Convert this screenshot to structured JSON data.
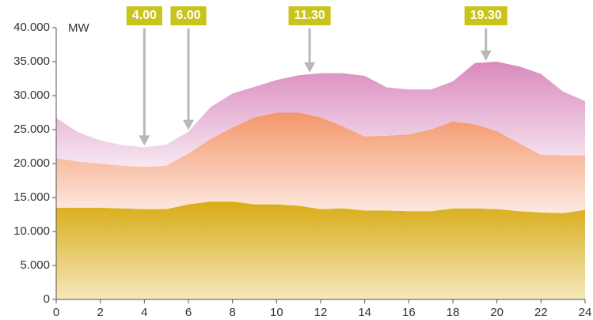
{
  "chart_data": {
    "type": "stacked-area",
    "y_unit": "MW",
    "x": [
      0,
      1,
      2,
      3,
      4,
      5,
      6,
      7,
      8,
      9,
      10,
      11,
      12,
      13,
      14,
      15,
      16,
      17,
      18,
      19,
      20,
      21,
      22,
      23,
      24
    ],
    "series": [
      {
        "color": "#d9ab14",
        "values": [
          13500,
          13500,
          13500,
          13400,
          13300,
          13300,
          14000,
          14400,
          14400,
          14000,
          14000,
          13800,
          13300,
          13400,
          13100,
          13100,
          13000,
          13000,
          13400,
          13400,
          13300,
          13000,
          12800,
          12700,
          13200
        ]
      },
      {
        "color": "#f3966a",
        "values": [
          7300,
          6800,
          6500,
          6300,
          6200,
          6400,
          7500,
          9200,
          10900,
          12800,
          13500,
          13700,
          13500,
          12100,
          10900,
          11000,
          11300,
          12000,
          12800,
          12400,
          11500,
          10000,
          8500,
          8500,
          8000
        ]
      },
      {
        "color": "#d98abd",
        "values": [
          5900,
          4300,
          3400,
          3000,
          2900,
          3100,
          3200,
          4700,
          5000,
          4500,
          4800,
          5500,
          6500,
          7800,
          8900,
          7100,
          6600,
          5900,
          5900,
          9000,
          10200,
          11300,
          11900,
          9400,
          8000
        ]
      }
    ],
    "xlim": [
      0,
      24
    ],
    "xticks": [
      0,
      2,
      4,
      6,
      8,
      10,
      12,
      14,
      16,
      18,
      20,
      22,
      24
    ],
    "ylim": [
      0,
      40000
    ],
    "yticks": [
      {
        "value": 0,
        "label": "0"
      },
      {
        "value": 5000,
        "label": "5.000"
      },
      {
        "value": 10000,
        "label": "10.000"
      },
      {
        "value": 15000,
        "label": "15.000"
      },
      {
        "value": 20000,
        "label": "20.000"
      },
      {
        "value": 25000,
        "label": "25.000"
      },
      {
        "value": 30000,
        "label": "30.000"
      },
      {
        "value": 35000,
        "label": "35.000"
      },
      {
        "value": 40000,
        "label": "40.000"
      }
    ],
    "annotation_color": "#c8c41c",
    "annotations": [
      {
        "x": 4,
        "label": "4.00"
      },
      {
        "x": 6,
        "label": "6.00"
      },
      {
        "x": 11.5,
        "label": "11.30"
      },
      {
        "x": 19.5,
        "label": "19.30"
      }
    ]
  }
}
